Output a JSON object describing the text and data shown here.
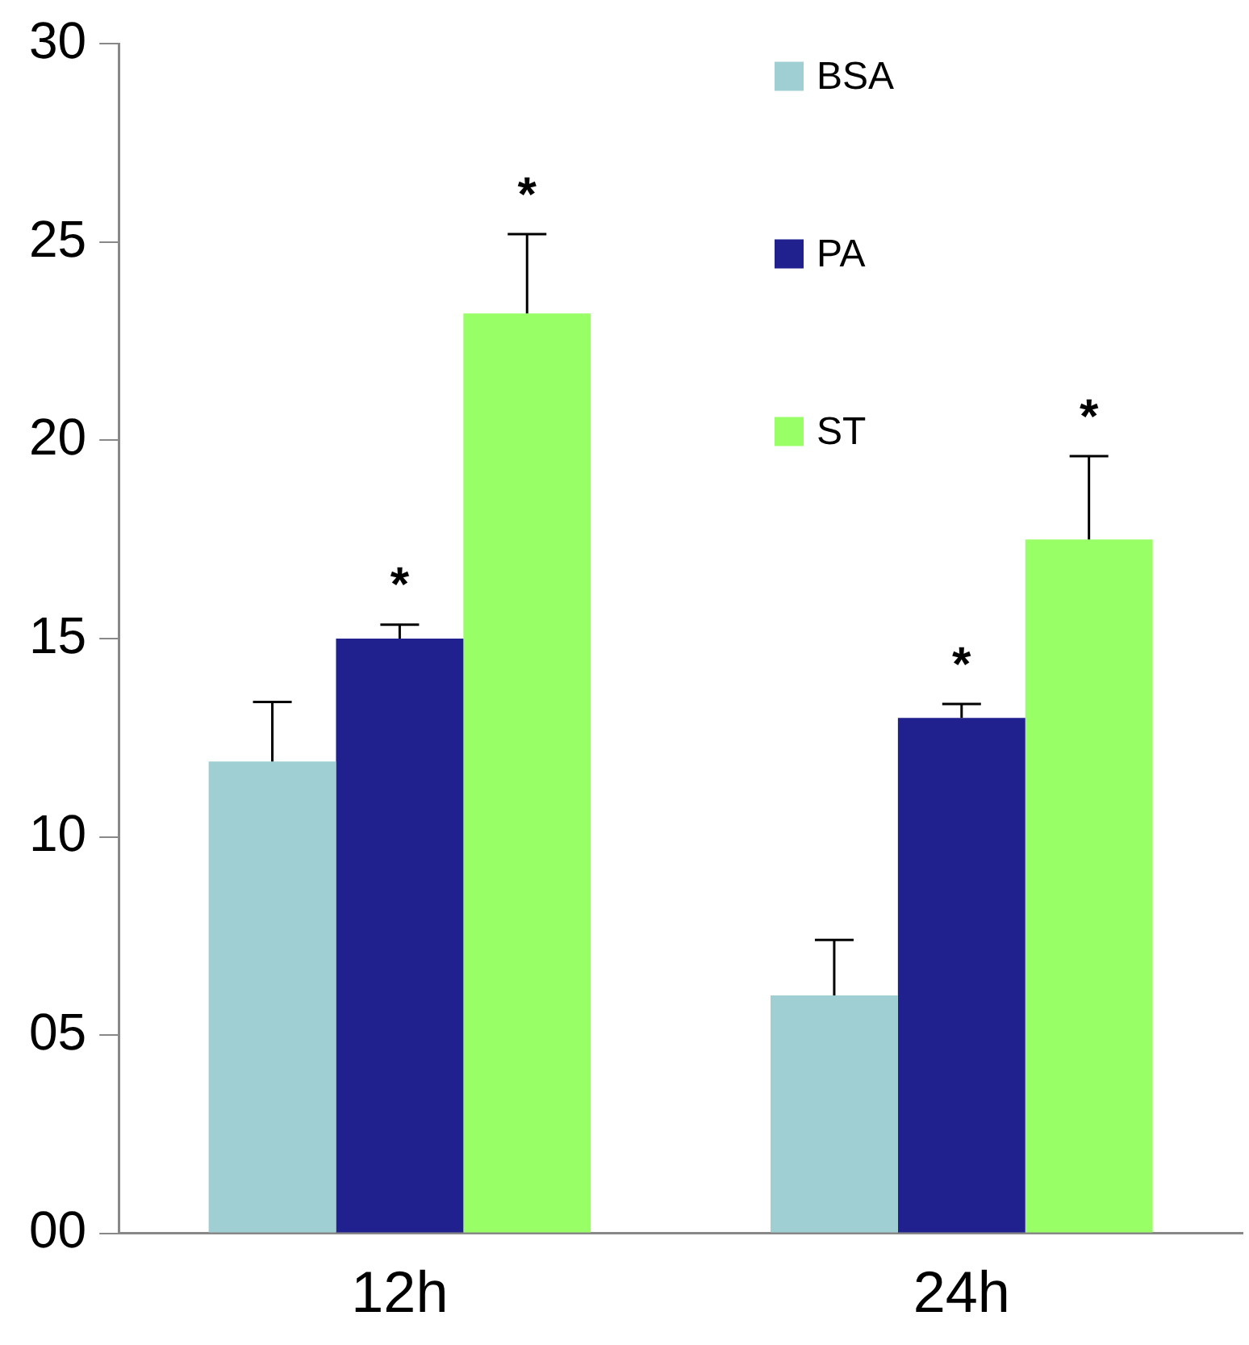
{
  "chart_data": {
    "type": "bar",
    "categories": [
      "12h",
      "24h"
    ],
    "series": [
      {
        "name": "BSA",
        "color": "#9fcfd3",
        "values": [
          11.9,
          6.0
        ],
        "errors": [
          [
            11.9,
            13.4
          ],
          [
            6.0,
            7.4
          ]
        ]
      },
      {
        "name": "PA",
        "color": "#20208f",
        "values": [
          15.0,
          13.0
        ],
        "errors": [
          [
            15.0,
            15.35
          ],
          [
            13.0,
            13.35
          ]
        ],
        "value_labels": [
          "*",
          "*"
        ]
      },
      {
        "name": "ST",
        "color": "#99ff66",
        "values": [
          23.2,
          17.5
        ],
        "errors": [
          [
            23.2,
            25.2
          ],
          [
            17.5,
            19.6
          ]
        ],
        "value_labels": [
          "*",
          "*"
        ]
      }
    ],
    "ylim": [
      0,
      30
    ],
    "yticks": [
      {
        "value": 0,
        "label": "00"
      },
      {
        "value": 5,
        "label": "05"
      },
      10,
      15,
      20,
      25,
      30
    ],
    "grid": false,
    "legend": "top right"
  }
}
